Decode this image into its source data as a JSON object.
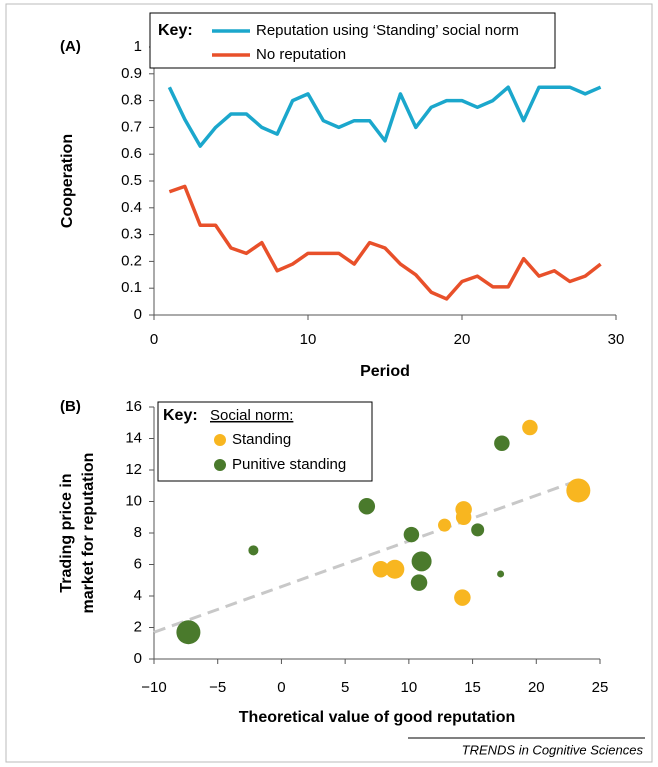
{
  "chart_data": [
    {
      "type": "line",
      "panel": "(A)",
      "key": "Key:",
      "xlabel": "Period",
      "ylabel": "Cooperation",
      "x": [
        1,
        2,
        3,
        4,
        5,
        6,
        7,
        8,
        9,
        10,
        11,
        12,
        13,
        14,
        15,
        16,
        17,
        18,
        19,
        20,
        21,
        22,
        23,
        24,
        25,
        26,
        27,
        28,
        29
      ],
      "series": [
        {
          "name": "Reputation using ‘Standing’ social norm",
          "color": "#1ba7cc",
          "values": [
            0.85,
            0.73,
            0.63,
            0.7,
            0.75,
            0.75,
            0.7,
            0.675,
            0.8,
            0.825,
            0.725,
            0.7,
            0.725,
            0.725,
            0.65,
            0.825,
            0.7,
            0.775,
            0.8,
            0.8,
            0.775,
            0.8,
            0.85,
            0.725,
            0.85,
            0.85,
            0.85,
            0.825,
            0.85
          ]
        },
        {
          "name": "No reputation",
          "color": "#e8502a",
          "values": [
            0.46,
            0.48,
            0.335,
            0.335,
            0.25,
            0.23,
            0.27,
            0.165,
            0.19,
            0.23,
            0.23,
            0.23,
            0.19,
            0.27,
            0.25,
            0.19,
            0.15,
            0.085,
            0.06,
            0.125,
            0.145,
            0.105,
            0.105,
            0.21,
            0.145,
            0.165,
            0.125,
            0.145,
            0.19
          ]
        }
      ],
      "xlim": [
        0,
        30
      ],
      "xticks": [
        0,
        10,
        20,
        30
      ],
      "ylim": [
        0,
        1
      ],
      "yticks": [
        0,
        0.1,
        0.2,
        0.3,
        0.4,
        0.5,
        0.6,
        0.7,
        0.8,
        0.9,
        1
      ],
      "grid": false
    },
    {
      "type": "scatter",
      "panel": "(B)",
      "key": "Key:",
      "legend_title": "Social norm:",
      "xlabel": "Theoretical value of good reputation",
      "ylabel": [
        "Trading price in",
        "market for reputation"
      ],
      "series": [
        {
          "name": "Standing",
          "color": "#f8b620",
          "x": [
            19.5,
            23.3,
            14.3,
            14.3,
            12.8,
            7.8,
            8.9,
            14.2
          ],
          "values": [
            14.7,
            10.7,
            9.5,
            9.0,
            8.5,
            5.7,
            5.7,
            3.9
          ],
          "sizes": [
            2.3,
            4,
            2.5,
            2.3,
            1.8,
            2.5,
            3,
            2.5
          ]
        },
        {
          "name": "Punitive standing",
          "color": "#4a7a2c",
          "x": [
            17.3,
            6.7,
            10.2,
            15.4,
            11.0,
            10.8,
            -2.2,
            17.2,
            -7.3
          ],
          "values": [
            13.7,
            9.7,
            7.9,
            8.2,
            6.2,
            4.85,
            6.9,
            5.4,
            1.7
          ],
          "sizes": [
            2.3,
            2.5,
            2.3,
            1.8,
            3.2,
            2.5,
            1.2,
            0.6,
            4
          ]
        }
      ],
      "trendline": {
        "color": "#c8c8c8",
        "x": [
          -10,
          23.5
        ],
        "values": [
          1.7,
          11.4
        ]
      },
      "xlim": [
        -10,
        25
      ],
      "xticks": [
        {
          "value": -10,
          "label": "−10"
        },
        {
          "value": -5,
          "label": "−5"
        },
        0,
        5,
        10,
        15,
        20,
        25
      ],
      "ylim": [
        0,
        16
      ],
      "yticks": [
        0,
        2,
        4,
        6,
        8,
        10,
        12,
        14,
        16
      ],
      "grid": false
    }
  ],
  "footer": "TRENDS in Cognitive Sciences"
}
